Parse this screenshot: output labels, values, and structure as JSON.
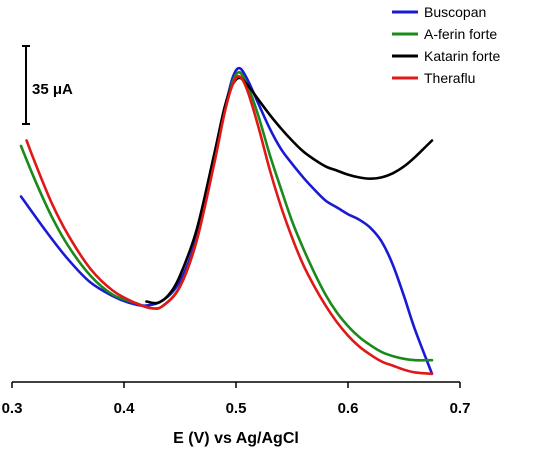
{
  "chart_data": {
    "type": "line",
    "title": "",
    "xlabel": "E (V) vs Ag/AgCl",
    "ylabel": "",
    "xlim": [
      0.3,
      0.7
    ],
    "x_ticks": [
      "0.3",
      "0.4",
      "0.5",
      "0.6",
      "0.7"
    ],
    "ylim": [
      -270,
      10
    ],
    "grid": false,
    "legend_position": "top-right",
    "scale_bar": {
      "label": "35 μA",
      "value": 35,
      "unit": "μA"
    },
    "series": [
      {
        "name": "Buscopan",
        "color": "#1a1ad6",
        "points": [
          [
            0.308,
            -134
          ],
          [
            0.33,
            -159
          ],
          [
            0.35,
            -180
          ],
          [
            0.37,
            -197
          ],
          [
            0.39,
            -207
          ],
          [
            0.405,
            -212
          ],
          [
            0.42,
            -214
          ],
          [
            0.435,
            -210
          ],
          [
            0.45,
            -196
          ],
          [
            0.465,
            -164
          ],
          [
            0.48,
            -110
          ],
          [
            0.49,
            -70
          ],
          [
            0.497,
            -47
          ],
          [
            0.503,
            -40
          ],
          [
            0.51,
            -48
          ],
          [
            0.52,
            -66
          ],
          [
            0.53,
            -84
          ],
          [
            0.54,
            -99
          ],
          [
            0.55,
            -110
          ],
          [
            0.56,
            -120
          ],
          [
            0.57,
            -129
          ],
          [
            0.58,
            -137
          ],
          [
            0.59,
            -142
          ],
          [
            0.6,
            -147
          ],
          [
            0.61,
            -151
          ],
          [
            0.62,
            -157
          ],
          [
            0.63,
            -167
          ],
          [
            0.64,
            -184
          ],
          [
            0.65,
            -207
          ],
          [
            0.66,
            -232
          ],
          [
            0.675,
            -264
          ]
        ]
      },
      {
        "name": "A-ferin forte",
        "color": "#1a8a1a",
        "points": [
          [
            0.308,
            -97
          ],
          [
            0.32,
            -121
          ],
          [
            0.335,
            -148
          ],
          [
            0.35,
            -170
          ],
          [
            0.37,
            -192
          ],
          [
            0.39,
            -206
          ],
          [
            0.41,
            -212
          ],
          [
            0.425,
            -216
          ],
          [
            0.435,
            -214
          ],
          [
            0.45,
            -200
          ],
          [
            0.465,
            -166
          ],
          [
            0.48,
            -110
          ],
          [
            0.49,
            -70
          ],
          [
            0.497,
            -50
          ],
          [
            0.503,
            -43
          ],
          [
            0.51,
            -52
          ],
          [
            0.52,
            -75
          ],
          [
            0.53,
            -103
          ],
          [
            0.54,
            -128
          ],
          [
            0.55,
            -152
          ],
          [
            0.56,
            -172
          ],
          [
            0.57,
            -190
          ],
          [
            0.58,
            -206
          ],
          [
            0.59,
            -219
          ],
          [
            0.6,
            -229
          ],
          [
            0.61,
            -237
          ],
          [
            0.62,
            -243
          ],
          [
            0.63,
            -248
          ],
          [
            0.64,
            -251
          ],
          [
            0.65,
            -253
          ],
          [
            0.66,
            -254
          ],
          [
            0.675,
            -254
          ]
        ]
      },
      {
        "name": "Katarin forte",
        "color": "#000000",
        "points": [
          [
            0.42,
            -211
          ],
          [
            0.43,
            -212
          ],
          [
            0.44,
            -206
          ],
          [
            0.45,
            -192
          ],
          [
            0.465,
            -158
          ],
          [
            0.48,
            -105
          ],
          [
            0.49,
            -68
          ],
          [
            0.497,
            -52
          ],
          [
            0.503,
            -47
          ],
          [
            0.51,
            -52
          ],
          [
            0.52,
            -63
          ],
          [
            0.53,
            -74
          ],
          [
            0.54,
            -84
          ],
          [
            0.55,
            -93
          ],
          [
            0.56,
            -101
          ],
          [
            0.57,
            -107
          ],
          [
            0.58,
            -112
          ],
          [
            0.59,
            -115
          ],
          [
            0.6,
            -118
          ],
          [
            0.61,
            -120
          ],
          [
            0.62,
            -121
          ],
          [
            0.63,
            -120
          ],
          [
            0.64,
            -117
          ],
          [
            0.65,
            -112
          ],
          [
            0.66,
            -105
          ],
          [
            0.67,
            -97
          ],
          [
            0.675,
            -93
          ]
        ]
      },
      {
        "name": "Theraflu",
        "color": "#e01818",
        "points": [
          [
            0.313,
            -93
          ],
          [
            0.32,
            -108
          ],
          [
            0.335,
            -138
          ],
          [
            0.35,
            -162
          ],
          [
            0.37,
            -187
          ],
          [
            0.39,
            -203
          ],
          [
            0.41,
            -212
          ],
          [
            0.425,
            -216
          ],
          [
            0.435,
            -214
          ],
          [
            0.45,
            -200
          ],
          [
            0.465,
            -166
          ],
          [
            0.48,
            -112
          ],
          [
            0.49,
            -72
          ],
          [
            0.497,
            -52
          ],
          [
            0.503,
            -46
          ],
          [
            0.51,
            -56
          ],
          [
            0.52,
            -83
          ],
          [
            0.53,
            -114
          ],
          [
            0.54,
            -141
          ],
          [
            0.55,
            -164
          ],
          [
            0.56,
            -184
          ],
          [
            0.57,
            -200
          ],
          [
            0.58,
            -214
          ],
          [
            0.59,
            -226
          ],
          [
            0.6,
            -236
          ],
          [
            0.61,
            -244
          ],
          [
            0.62,
            -250
          ],
          [
            0.63,
            -255
          ],
          [
            0.64,
            -258
          ],
          [
            0.65,
            -261
          ],
          [
            0.66,
            -263
          ],
          [
            0.675,
            -264
          ]
        ]
      }
    ]
  }
}
